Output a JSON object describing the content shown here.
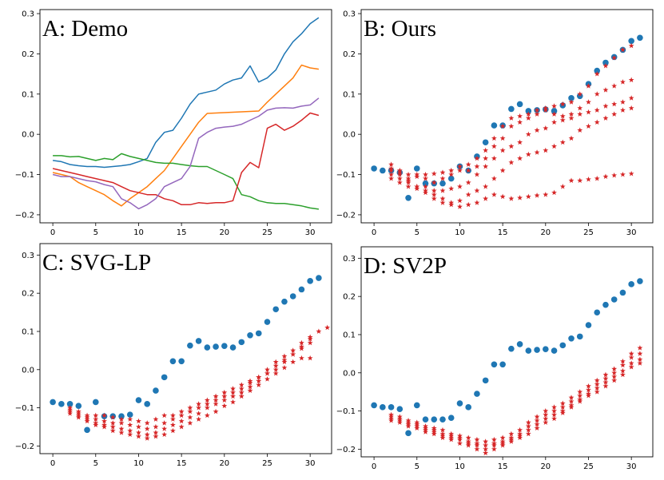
{
  "chart_data": [
    {
      "type": "line",
      "title": "A: Demo",
      "xlim": [
        -1.5,
        32.5
      ],
      "ylim": [
        -0.22,
        0.31
      ],
      "xticks": [
        0,
        5,
        10,
        15,
        20,
        25,
        30
      ],
      "yticks": [
        -0.2,
        -0.1,
        0.0,
        0.1,
        0.2,
        0.3
      ],
      "xtick_labels": [
        "0",
        "5",
        "10",
        "15",
        "20",
        "25",
        "30"
      ],
      "ytick_labels": [
        "−0.2",
        "−0.1",
        "0.0",
        "0.1",
        "0.2",
        "0.3"
      ],
      "series": [
        {
          "name": "blue",
          "color": "#1f77b4",
          "values": [
            -0.065,
            -0.068,
            -0.075,
            -0.078,
            -0.08,
            -0.08,
            -0.082,
            -0.08,
            -0.078,
            -0.075,
            -0.068,
            -0.06,
            -0.02,
            0.005,
            0.01,
            0.04,
            0.075,
            0.1,
            0.105,
            0.11,
            0.125,
            0.135,
            0.14,
            0.17,
            0.13,
            0.14,
            0.16,
            0.2,
            0.23,
            0.25,
            0.275,
            0.29
          ]
        },
        {
          "name": "orange",
          "color": "#ff7f0e",
          "values": [
            -0.095,
            -0.1,
            -0.105,
            -0.12,
            -0.13,
            -0.14,
            -0.15,
            -0.165,
            -0.178,
            -0.16,
            -0.145,
            -0.13,
            -0.11,
            -0.09,
            -0.06,
            -0.03,
            0.0,
            0.03,
            0.052,
            0.053,
            0.054,
            0.055,
            0.056,
            0.057,
            0.058,
            0.08,
            0.1,
            0.12,
            0.14,
            0.172,
            0.165,
            0.162
          ]
        },
        {
          "name": "green",
          "color": "#2ca02c",
          "values": [
            -0.053,
            -0.053,
            -0.056,
            -0.055,
            -0.06,
            -0.065,
            -0.06,
            -0.063,
            -0.048,
            -0.055,
            -0.06,
            -0.065,
            -0.07,
            -0.072,
            -0.072,
            -0.075,
            -0.078,
            -0.08,
            -0.08,
            -0.09,
            -0.1,
            -0.11,
            -0.15,
            -0.155,
            -0.165,
            -0.17,
            -0.172,
            -0.172,
            -0.175,
            -0.178,
            -0.183,
            -0.186
          ]
        },
        {
          "name": "red",
          "color": "#d62728",
          "values": [
            -0.085,
            -0.09,
            -0.095,
            -0.1,
            -0.105,
            -0.11,
            -0.115,
            -0.12,
            -0.13,
            -0.14,
            -0.145,
            -0.15,
            -0.15,
            -0.16,
            -0.165,
            -0.175,
            -0.175,
            -0.17,
            -0.172,
            -0.17,
            -0.17,
            -0.165,
            -0.095,
            -0.07,
            -0.083,
            0.015,
            0.025,
            0.01,
            0.02,
            0.035,
            0.053,
            0.047
          ]
        },
        {
          "name": "purple",
          "color": "#9467bd",
          "values": [
            -0.1,
            -0.105,
            -0.105,
            -0.11,
            -0.115,
            -0.118,
            -0.125,
            -0.13,
            -0.16,
            -0.17,
            -0.185,
            -0.175,
            -0.16,
            -0.13,
            -0.12,
            -0.11,
            -0.08,
            -0.01,
            0.005,
            0.015,
            0.018,
            0.02,
            0.025,
            0.035,
            0.045,
            0.06,
            0.065,
            0.066,
            0.065,
            0.07,
            0.073,
            0.09
          ]
        }
      ]
    },
    {
      "type": "scatter",
      "title": "B: Ours",
      "xlim": [
        -1.5,
        32.5
      ],
      "ylim": [
        -0.22,
        0.31
      ],
      "xticks": [
        0,
        5,
        10,
        15,
        20,
        25,
        30
      ],
      "yticks": [
        -0.2,
        -0.1,
        0.0,
        0.1,
        0.2,
        0.3
      ],
      "xtick_labels": [
        "0",
        "5",
        "10",
        "15",
        "20",
        "25",
        "30"
      ],
      "ytick_labels": [
        "−0.2",
        "−0.1",
        "0.0",
        "0.1",
        "0.2",
        "0.3"
      ],
      "ground_truth": {
        "color": "#1f77b4",
        "start": 0,
        "values": [
          -0.085,
          -0.09,
          -0.09,
          -0.095,
          -0.158,
          -0.085,
          -0.122,
          -0.122,
          -0.122,
          -0.11,
          -0.08,
          -0.09,
          -0.055,
          -0.02,
          0.022,
          0.022,
          0.063,
          0.075,
          0.058,
          0.06,
          0.062,
          0.058,
          0.072,
          0.09,
          0.095,
          0.125,
          0.158,
          0.178,
          0.192,
          0.21,
          0.232,
          0.24
        ]
      },
      "predictions": {
        "color": "#d62728",
        "start": 2,
        "series": [
          [
            -0.09,
            -0.095,
            -0.1,
            -0.105,
            -0.1,
            -0.098,
            -0.095,
            -0.09,
            -0.08,
            -0.075,
            -0.06,
            -0.04,
            -0.01,
            0.02,
            0.04,
            0.045,
            0.05,
            0.06,
            0.065,
            0.07,
            0.075,
            0.08,
            0.1,
            0.12,
            0.15,
            0.17,
            0.19,
            0.21,
            0.22
          ],
          [
            -0.075,
            -0.09,
            -0.11,
            -0.1,
            -0.11,
            -0.12,
            -0.11,
            -0.1,
            -0.09,
            -0.09,
            -0.08,
            -0.06,
            -0.03,
            -0.01,
            0.02,
            0.03,
            0.04,
            0.05,
            0.06,
            0.05,
            0.045,
            0.05,
            0.065,
            0.08,
            0.1,
            0.11,
            0.12,
            0.13,
            0.135
          ],
          [
            -0.1,
            -0.11,
            -0.12,
            -0.13,
            -0.13,
            -0.14,
            -0.14,
            -0.135,
            -0.13,
            -0.12,
            -0.1,
            -0.08,
            -0.06,
            -0.04,
            -0.03,
            -0.02,
            0.0,
            0.01,
            0.015,
            0.03,
            0.035,
            0.04,
            0.05,
            0.055,
            0.06,
            0.07,
            0.075,
            0.08,
            0.09
          ],
          [
            -0.085,
            -0.1,
            -0.115,
            -0.13,
            -0.145,
            -0.16,
            -0.17,
            -0.175,
            -0.165,
            -0.15,
            -0.14,
            -0.13,
            -0.11,
            -0.09,
            -0.07,
            -0.06,
            -0.05,
            -0.045,
            -0.04,
            -0.03,
            -0.02,
            -0.01,
            0.01,
            0.02,
            0.03,
            0.04,
            0.05,
            0.06,
            0.065
          ],
          [
            -0.11,
            -0.12,
            -0.13,
            -0.135,
            -0.14,
            -0.15,
            -0.16,
            -0.17,
            -0.18,
            -0.175,
            -0.17,
            -0.16,
            -0.15,
            -0.155,
            -0.16,
            -0.158,
            -0.155,
            -0.152,
            -0.15,
            -0.145,
            -0.13,
            -0.115,
            -0.115,
            -0.112,
            -0.11,
            -0.105,
            -0.102,
            -0.1,
            -0.098
          ]
        ]
      }
    },
    {
      "type": "scatter",
      "title": "C: SVG-LP",
      "xlim": [
        -1.5,
        32.5
      ],
      "ylim": [
        -0.22,
        0.33
      ],
      "xticks": [
        0,
        5,
        10,
        15,
        20,
        25,
        30
      ],
      "yticks": [
        -0.2,
        -0.1,
        0.0,
        0.1,
        0.2,
        0.3
      ],
      "xtick_labels": [
        "0",
        "5",
        "10",
        "15",
        "20",
        "25",
        "30"
      ],
      "ytick_labels": [
        "−0.2",
        "−0.1",
        "0.0",
        "0.1",
        "0.2",
        "0.3"
      ],
      "ground_truth": {
        "color": "#1f77b4",
        "start": 0,
        "values": [
          -0.085,
          -0.09,
          -0.09,
          -0.095,
          -0.158,
          -0.085,
          -0.122,
          -0.122,
          -0.122,
          -0.118,
          -0.08,
          -0.09,
          -0.055,
          -0.02,
          0.022,
          0.022,
          0.063,
          0.075,
          0.058,
          0.06,
          0.062,
          0.058,
          0.072,
          0.09,
          0.095,
          0.125,
          0.158,
          0.178,
          0.192,
          0.21,
          0.232,
          0.24
        ]
      },
      "predictions": {
        "color": "#d62728",
        "start": 2,
        "series": [
          [
            -0.1,
            -0.11,
            -0.12,
            -0.12,
            -0.12,
            -0.125,
            -0.13,
            -0.13,
            -0.135,
            -0.14,
            -0.13,
            -0.12,
            -0.12,
            -0.11,
            -0.1,
            -0.09,
            -0.08,
            -0.07,
            -0.06,
            -0.05,
            -0.04,
            -0.03,
            -0.02,
            -0.01,
            0.0,
            0.02,
            0.04,
            0.06,
            0.08,
            0.1,
            0.11
          ],
          [
            -0.105,
            -0.115,
            -0.125,
            -0.13,
            -0.135,
            -0.14,
            -0.14,
            -0.145,
            -0.15,
            -0.155,
            -0.15,
            -0.14,
            -0.13,
            -0.12,
            -0.11,
            -0.1,
            -0.09,
            -0.08,
            -0.07,
            -0.06,
            -0.05,
            -0.035,
            -0.02,
            0.0,
            0.02,
            0.035,
            0.05,
            0.07,
            0.085
          ],
          [
            -0.11,
            -0.12,
            -0.13,
            -0.14,
            -0.145,
            -0.15,
            -0.155,
            -0.16,
            -0.165,
            -0.17,
            -0.165,
            -0.155,
            -0.145,
            -0.135,
            -0.125,
            -0.115,
            -0.1,
            -0.09,
            -0.08,
            -0.07,
            -0.06,
            -0.045,
            -0.03,
            -0.01,
            0.01,
            0.025,
            0.04,
            0.055,
            0.07
          ],
          [
            -0.115,
            -0.125,
            -0.135,
            -0.145,
            -0.15,
            -0.16,
            -0.165,
            -0.17,
            -0.175,
            -0.18,
            -0.175,
            -0.17,
            -0.16,
            -0.15,
            -0.14,
            -0.13,
            -0.12,
            -0.11,
            -0.095,
            -0.085,
            -0.07,
            -0.055,
            -0.04,
            -0.025,
            -0.01,
            0.005,
            0.02,
            0.03,
            0.03
          ]
        ]
      }
    },
    {
      "type": "scatter",
      "title": "D: SV2P",
      "xlim": [
        -1.5,
        32.5
      ],
      "ylim": [
        -0.22,
        0.33
      ],
      "xticks": [
        0,
        5,
        10,
        15,
        20,
        25,
        30
      ],
      "yticks": [
        -0.2,
        -0.1,
        0.0,
        0.1,
        0.2,
        0.3
      ],
      "xtick_labels": [
        "0",
        "5",
        "10",
        "15",
        "20",
        "25",
        "30"
      ],
      "ytick_labels": [
        "−0.2",
        "−0.1",
        "0.0",
        "0.1",
        "0.2",
        "0.3"
      ],
      "ground_truth": {
        "color": "#1f77b4",
        "start": 0,
        "values": [
          -0.085,
          -0.09,
          -0.09,
          -0.095,
          -0.158,
          -0.085,
          -0.122,
          -0.122,
          -0.122,
          -0.118,
          -0.08,
          -0.09,
          -0.055,
          -0.02,
          0.022,
          0.022,
          0.063,
          0.075,
          0.058,
          0.06,
          0.062,
          0.058,
          0.072,
          0.09,
          0.095,
          0.125,
          0.158,
          0.178,
          0.192,
          0.21,
          0.232,
          0.24
        ]
      },
      "predictions": {
        "color": "#d62728",
        "start": 2,
        "series": [
          [
            -0.11,
            -0.115,
            -0.125,
            -0.13,
            -0.14,
            -0.145,
            -0.15,
            -0.16,
            -0.165,
            -0.17,
            -0.175,
            -0.18,
            -0.175,
            -0.17,
            -0.16,
            -0.15,
            -0.13,
            -0.115,
            -0.1,
            -0.09,
            -0.08,
            -0.065,
            -0.05,
            -0.035,
            -0.02,
            -0.005,
            0.01,
            0.03,
            0.05,
            0.065
          ],
          [
            -0.115,
            -0.12,
            -0.13,
            -0.135,
            -0.145,
            -0.15,
            -0.16,
            -0.165,
            -0.17,
            -0.18,
            -0.185,
            -0.19,
            -0.185,
            -0.18,
            -0.17,
            -0.16,
            -0.14,
            -0.125,
            -0.11,
            -0.1,
            -0.09,
            -0.075,
            -0.06,
            -0.045,
            -0.03,
            -0.015,
            0.0,
            0.02,
            0.04,
            0.05
          ],
          [
            -0.12,
            -0.125,
            -0.135,
            -0.14,
            -0.15,
            -0.155,
            -0.165,
            -0.17,
            -0.175,
            -0.185,
            -0.19,
            -0.2,
            -0.19,
            -0.185,
            -0.175,
            -0.165,
            -0.15,
            -0.135,
            -0.12,
            -0.11,
            -0.1,
            -0.085,
            -0.07,
            -0.055,
            -0.04,
            -0.025,
            -0.01,
            0.005,
            0.025,
            0.035
          ],
          [
            -0.125,
            -0.13,
            -0.14,
            -0.145,
            -0.155,
            -0.16,
            -0.17,
            -0.175,
            -0.185,
            -0.19,
            -0.2,
            -0.21,
            -0.2,
            -0.19,
            -0.18,
            -0.17,
            -0.16,
            -0.145,
            -0.13,
            -0.12,
            -0.105,
            -0.09,
            -0.075,
            -0.06,
            -0.05,
            -0.035,
            -0.02,
            -0.005,
            0.015,
            0.025
          ]
        ]
      }
    }
  ]
}
